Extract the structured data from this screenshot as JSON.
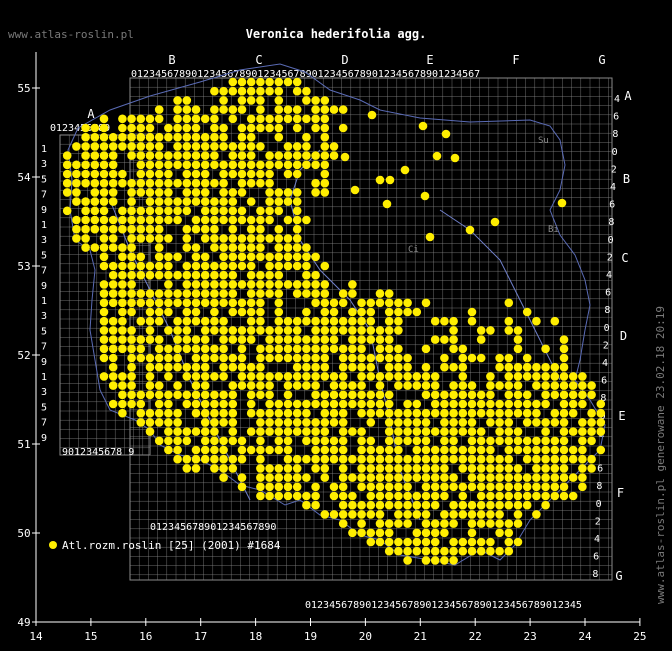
{
  "header": {
    "site_label": "www.atlas-roslin.pl",
    "title": "Veronica hederifolia agg."
  },
  "footer": {
    "watermark": "www.atlas-roslin.pl generowane 23.02.18 20:19"
  },
  "legend": {
    "marker_color": "#FFEE00",
    "label": "Atl.rozm.roslin [25] (2001) #1684"
  },
  "axes": {
    "x_ticks": [
      "14",
      "15",
      "16",
      "17",
      "18",
      "19",
      "20",
      "21",
      "22",
      "23",
      "24",
      "25"
    ],
    "y_ticks": [
      "49",
      "50",
      "51",
      "52",
      "53",
      "54",
      "55"
    ]
  },
  "grid_letters": {
    "top": [
      "A",
      "B",
      "C",
      "D",
      "E",
      "F",
      "G"
    ],
    "right": [
      "A",
      "B",
      "C",
      "D",
      "E",
      "F",
      "G"
    ]
  },
  "grid_digits": {
    "top_row_a": "0123456789",
    "top_row_main": "0123456789012345678901234567890123456789012345678901234567",
    "bottom_left": "9012345678 9",
    "bottom_mid": "012345678901234567890",
    "bottom_main": "0123456789012345678901234567890123456789012345",
    "left_column": [
      "1",
      "3",
      "5",
      "7",
      "9",
      "1",
      "3",
      "5",
      "7",
      "9",
      "1",
      "3",
      "5",
      "7",
      "9",
      "1",
      "3",
      "5",
      "7",
      "9"
    ],
    "right_column": [
      "4",
      "6",
      "8",
      "0",
      "2",
      "4",
      "6",
      "8",
      "0",
      "2",
      "4",
      "6",
      "8",
      "0",
      "2",
      "4",
      "6",
      "8",
      "0",
      "2",
      "4",
      "6",
      "8",
      "0",
      "2",
      "4",
      "6",
      "8"
    ]
  },
  "map_labels": [
    "Su",
    "Bi",
    "Ci"
  ],
  "colors": {
    "background": "#000000",
    "text": "#FFFFFF",
    "grid": "#8A8A8A",
    "border": "#5A6BB5",
    "river": "#6F7FC8",
    "dots": "#FFEE00",
    "site_label": "#7A7A7A",
    "watermark": "#7A7A7A"
  }
}
